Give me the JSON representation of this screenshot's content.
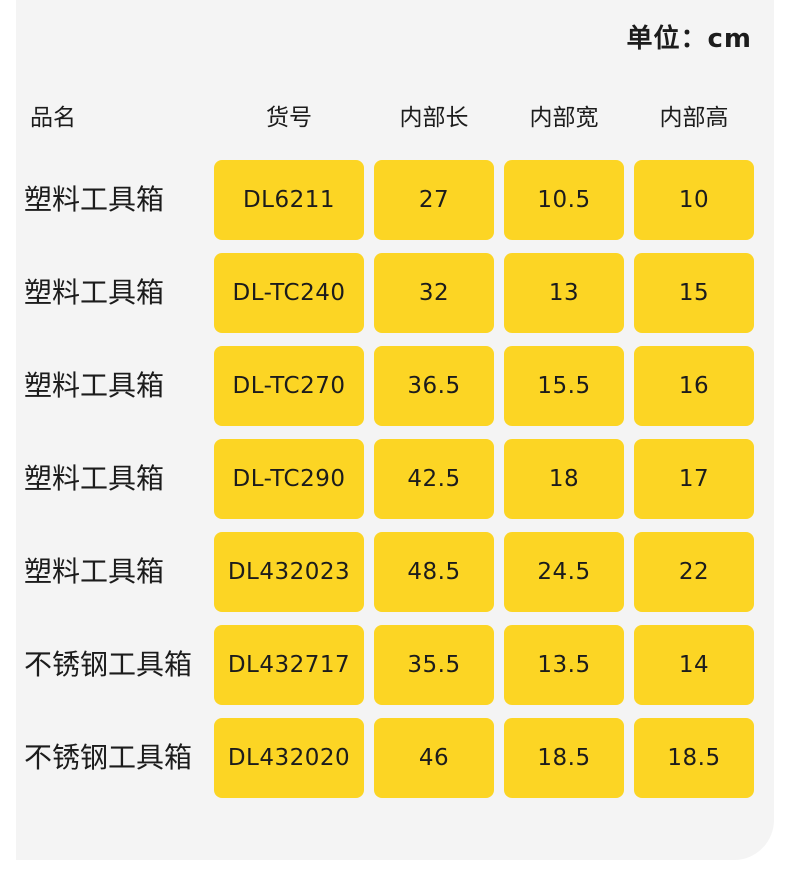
{
  "unit_label": "单位：cm",
  "headers": [
    "品名",
    "货号",
    "内部长",
    "内部宽",
    "内部高"
  ],
  "rows": [
    {
      "name": "塑料工具箱",
      "code": "DL6211",
      "length": "27",
      "width": "10.5",
      "height": "10"
    },
    {
      "name": "塑料工具箱",
      "code": "DL-TC240",
      "length": "32",
      "width": "13",
      "height": "15"
    },
    {
      "name": "塑料工具箱",
      "code": "DL-TC270",
      "length": "36.5",
      "width": "15.5",
      "height": "16"
    },
    {
      "name": "塑料工具箱",
      "code": "DL-TC290",
      "length": "42.5",
      "width": "18",
      "height": "17"
    },
    {
      "name": "塑料工具箱",
      "code": "DL432023",
      "length": "48.5",
      "width": "24.5",
      "height": "22"
    },
    {
      "name": "不锈钢工具箱",
      "code": "DL432717",
      "length": "35.5",
      "width": "13.5",
      "height": "14"
    },
    {
      "name": "不锈钢工具箱",
      "code": "DL432020",
      "length": "46",
      "width": "18.5",
      "height": "18.5"
    }
  ],
  "colors": {
    "cell_fill": "#fcd524",
    "card_bg": "#f4f4f4",
    "text": "#1c1c1c"
  }
}
